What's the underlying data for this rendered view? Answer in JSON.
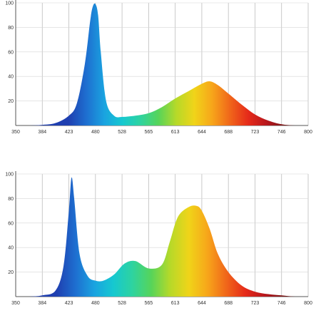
{
  "chart_data": [
    {
      "type": "area",
      "x_tick_labels": [
        "350",
        "384",
        "423",
        "480",
        "528",
        "565",
        "613",
        "644",
        "688",
        "723",
        "746",
        "800"
      ],
      "y_tick_labels": [
        "20",
        "40",
        "60",
        "80",
        "100"
      ],
      "ylim": [
        0,
        100
      ],
      "grid": true,
      "legend": "none",
      "curve": {
        "x_positions": [
          0,
          0.5,
          1,
          1.5,
          2,
          2.3,
          2.6,
          2.8,
          2.9,
          3.0,
          3.1,
          3.2,
          3.4,
          3.7,
          4.0,
          4.5,
          5.0,
          5.5,
          6.0,
          6.5,
          7.0,
          7.3,
          7.6,
          8.0,
          8.5,
          9.0,
          9.5,
          10.0,
          10.5,
          11
        ],
        "values": [
          0,
          0,
          0.5,
          2,
          8,
          18,
          50,
          85,
          97,
          99,
          90,
          60,
          20,
          8,
          7,
          8,
          10,
          15,
          22,
          28,
          34,
          36,
          33,
          26,
          17,
          9,
          4,
          1,
          0,
          0
        ]
      },
      "spectrum_colors": [
        "#1f3fb0",
        "#1e6fd0",
        "#1aa3e0",
        "#16c8d0",
        "#2ed3a0",
        "#56d45a",
        "#b6d929",
        "#f0d419",
        "#f7a51a",
        "#f0651a",
        "#e52a1a",
        "#b8171d",
        "#7a1616",
        "#3f0d0d"
      ]
    },
    {
      "type": "area",
      "x_tick_labels": [
        "350",
        "384",
        "423",
        "480",
        "528",
        "565",
        "613",
        "644",
        "688",
        "723",
        "746",
        "800"
      ],
      "y_tick_labels": [
        "20",
        "40",
        "60",
        "80",
        "100"
      ],
      "ylim": [
        0,
        100
      ],
      "grid": true,
      "legend": "none",
      "curve": {
        "x_positions": [
          0,
          0.5,
          1,
          1.5,
          1.8,
          2.0,
          2.1,
          2.2,
          2.4,
          2.7,
          3.0,
          3.3,
          3.7,
          4.1,
          4.5,
          5.0,
          5.5,
          5.8,
          6.1,
          6.5,
          6.8,
          7.0,
          7.3,
          7.6,
          8.0,
          8.5,
          9.0,
          9.5,
          10.0,
          10.5,
          11
        ],
        "values": [
          0,
          0,
          1,
          5,
          25,
          70,
          97,
          80,
          35,
          17,
          13,
          13,
          18,
          27,
          29,
          23,
          26,
          45,
          65,
          73,
          74,
          70,
          55,
          35,
          20,
          9,
          4,
          2,
          1,
          0,
          0
        ]
      },
      "spectrum_colors": [
        "#1f3fb0",
        "#1e6fd0",
        "#1aa3e0",
        "#16c8d0",
        "#2ed3a0",
        "#56d45a",
        "#b6d929",
        "#f0d419",
        "#f7a51a",
        "#f0651a",
        "#e52a1a",
        "#b8171d",
        "#7a1616",
        "#3f0d0d"
      ]
    }
  ]
}
